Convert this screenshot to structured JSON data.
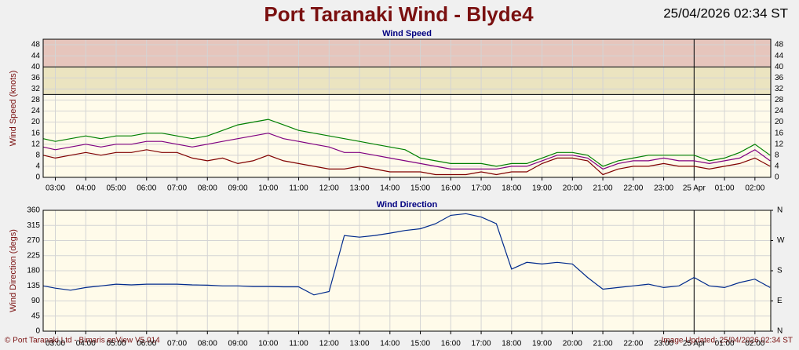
{
  "header": {
    "title": "Port Taranaki Wind - Blyde4",
    "timestamp": "25/04/2026 02:34 ST"
  },
  "chart_data": [
    {
      "type": "line",
      "title": "Wind Speed",
      "ylabel": "Wind Speed (knots)",
      "x": [
        2.6,
        3,
        3.5,
        4,
        4.5,
        5,
        5.5,
        6,
        6.5,
        7,
        7.5,
        8,
        8.5,
        9,
        9.5,
        10,
        10.5,
        11,
        11.5,
        12,
        12.5,
        13,
        13.5,
        14,
        14.5,
        15,
        15.5,
        16,
        16.5,
        17,
        17.5,
        18,
        18.5,
        19,
        19.5,
        20,
        20.5,
        21,
        21.5,
        22,
        22.5,
        23,
        23.5,
        24,
        24.5,
        25,
        25.5,
        26,
        26.5
      ],
      "series": [
        {
          "color": "#008000",
          "values": [
            14,
            13,
            14,
            15,
            14,
            15,
            15,
            16,
            16,
            15,
            14,
            15,
            17,
            19,
            20,
            21,
            19,
            17,
            16,
            15,
            14,
            13,
            12,
            11,
            10,
            7,
            6,
            5,
            5,
            5,
            4,
            5,
            5,
            7,
            9,
            9,
            8,
            4,
            6,
            7,
            8,
            8,
            8,
            8,
            6,
            7,
            9,
            12,
            8
          ]
        },
        {
          "color": "#800080",
          "values": [
            11,
            10,
            11,
            12,
            11,
            12,
            12,
            13,
            13,
            12,
            11,
            12,
            13,
            14,
            15,
            16,
            14,
            13,
            12,
            11,
            9,
            9,
            8,
            7,
            6,
            5,
            4,
            3,
            3,
            3,
            3,
            4,
            4,
            6,
            8,
            8,
            7,
            3,
            5,
            6,
            6,
            7,
            6,
            6,
            5,
            6,
            7,
            10,
            6
          ]
        },
        {
          "color": "#800000",
          "values": [
            8,
            7,
            8,
            9,
            8,
            9,
            9,
            10,
            9,
            9,
            7,
            6,
            7,
            5,
            6,
            8,
            6,
            5,
            4,
            3,
            3,
            4,
            3,
            2,
            2,
            2,
            1,
            1,
            1,
            2,
            1,
            2,
            2,
            5,
            7,
            7,
            6,
            1,
            3,
            4,
            4,
            5,
            4,
            4,
            3,
            4,
            5,
            7,
            4
          ]
        }
      ],
      "xlim": [
        2.6,
        26.52
      ],
      "xticks": [
        {
          "value": 3,
          "label": "03:00"
        },
        {
          "value": 4,
          "label": "04:00"
        },
        {
          "value": 5,
          "label": "05:00"
        },
        {
          "value": 6,
          "label": "06:00"
        },
        {
          "value": 7,
          "label": "07:00"
        },
        {
          "value": 8,
          "label": "08:00"
        },
        {
          "value": 9,
          "label": "09:00"
        },
        {
          "value": 10,
          "label": "10:00"
        },
        {
          "value": 11,
          "label": "11:00"
        },
        {
          "value": 12,
          "label": "12:00"
        },
        {
          "value": 13,
          "label": "13:00"
        },
        {
          "value": 14,
          "label": "14:00"
        },
        {
          "value": 15,
          "label": "15:00"
        },
        {
          "value": 16,
          "label": "16:00"
        },
        {
          "value": 17,
          "label": "17:00"
        },
        {
          "value": 18,
          "label": "18:00"
        },
        {
          "value": 19,
          "label": "19:00"
        },
        {
          "value": 20,
          "label": "20:00"
        },
        {
          "value": 21,
          "label": "21:00"
        },
        {
          "value": 22,
          "label": "22:00"
        },
        {
          "value": 23,
          "label": "23:00"
        },
        {
          "value": 24,
          "label": "25 Apr"
        },
        {
          "value": 25,
          "label": "01:00"
        },
        {
          "value": 26,
          "label": "02:00"
        }
      ],
      "ylim": [
        0,
        50
      ],
      "yticks": [
        0,
        4,
        8,
        12,
        16,
        20,
        24,
        28,
        32,
        36,
        40,
        44,
        48
      ],
      "bands": [
        {
          "from": 30,
          "to": 40,
          "color": "#ebe4c0"
        },
        {
          "from": 40,
          "to": 50,
          "color": "#e6c5bc"
        }
      ],
      "markers": [
        24
      ],
      "grid": true
    },
    {
      "type": "line",
      "title": "Wind Direction",
      "ylabel": "Wind Direction (degs)",
      "x": [
        2.6,
        3,
        3.5,
        4,
        4.5,
        5,
        5.5,
        6,
        6.5,
        7,
        7.5,
        8,
        8.5,
        9,
        9.5,
        10,
        10.5,
        11,
        11.5,
        12,
        12.5,
        13,
        13.5,
        14,
        14.5,
        15,
        15.5,
        16,
        16.5,
        17,
        17.5,
        18,
        18.5,
        19,
        19.5,
        20,
        20.5,
        21,
        21.5,
        22,
        22.5,
        23,
        23.5,
        24,
        24.5,
        25,
        25.5,
        26,
        26.5
      ],
      "series": [
        {
          "color": "#002a8c",
          "values": [
            135,
            128,
            122,
            130,
            135,
            140,
            138,
            140,
            140,
            140,
            138,
            137,
            135,
            135,
            133,
            133,
            132,
            132,
            108,
            118,
            285,
            280,
            285,
            292,
            300,
            305,
            320,
            345,
            350,
            340,
            320,
            185,
            205,
            200,
            205,
            200,
            160,
            125,
            130,
            135,
            140,
            130,
            135,
            160,
            135,
            130,
            145,
            155,
            130
          ]
        }
      ],
      "xlim": [
        2.6,
        26.52
      ],
      "xticks": [
        {
          "value": 3,
          "label": "03:00"
        },
        {
          "value": 4,
          "label": "04:00"
        },
        {
          "value": 5,
          "label": "05:00"
        },
        {
          "value": 6,
          "label": "06:00"
        },
        {
          "value": 7,
          "label": "07:00"
        },
        {
          "value": 8,
          "label": "08:00"
        },
        {
          "value": 9,
          "label": "09:00"
        },
        {
          "value": 10,
          "label": "10:00"
        },
        {
          "value": 11,
          "label": "11:00"
        },
        {
          "value": 12,
          "label": "12:00"
        },
        {
          "value": 13,
          "label": "13:00"
        },
        {
          "value": 14,
          "label": "14:00"
        },
        {
          "value": 15,
          "label": "15:00"
        },
        {
          "value": 16,
          "label": "16:00"
        },
        {
          "value": 17,
          "label": "17:00"
        },
        {
          "value": 18,
          "label": "18:00"
        },
        {
          "value": 19,
          "label": "19:00"
        },
        {
          "value": 20,
          "label": "20:00"
        },
        {
          "value": 21,
          "label": "21:00"
        },
        {
          "value": 22,
          "label": "22:00"
        },
        {
          "value": 23,
          "label": "23:00"
        },
        {
          "value": 24,
          "label": "25 Apr"
        },
        {
          "value": 25,
          "label": "01:00"
        },
        {
          "value": 26,
          "label": "02:00"
        }
      ],
      "ylim": [
        0,
        360
      ],
      "yticks": [
        0,
        45,
        90,
        135,
        180,
        225,
        270,
        315,
        360
      ],
      "y2lim": [
        0,
        360
      ],
      "y2ticks": [
        {
          "value": 0,
          "label": "N"
        },
        {
          "value": 90,
          "label": "E"
        },
        {
          "value": 180,
          "label": "S"
        },
        {
          "value": 270,
          "label": "W"
        },
        {
          "value": 360,
          "label": "N"
        }
      ],
      "markers": [
        24
      ],
      "grid": true
    }
  ],
  "footer": {
    "left": "© Port Taranaki Ltd - Bimaris enView V5.014",
    "right": "Image Updated: 25/04/2026 02:34 ST"
  }
}
